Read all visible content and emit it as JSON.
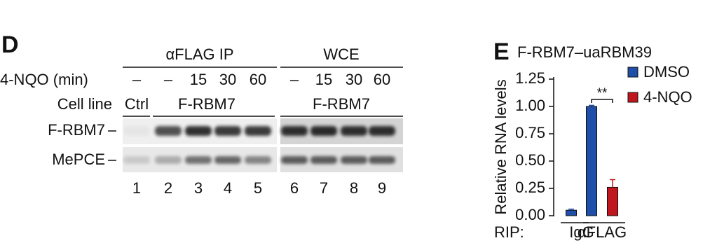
{
  "panel_d": {
    "label": "D",
    "header": {
      "ip": "αFLAG IP",
      "wce": "WCE"
    },
    "treatment": {
      "label": "4-NQO (min)",
      "lanes": [
        "–",
        "–",
        "15",
        "30",
        "60",
        "–",
        "15",
        "30",
        "60"
      ]
    },
    "cell_line": {
      "label": "Cell line",
      "groups": [
        "Ctrl",
        "F-RBM7",
        "F-RBM7"
      ]
    },
    "blots": [
      "F-RBM7",
      "MePCE"
    ],
    "lanes": [
      "1",
      "2",
      "3",
      "4",
      "5",
      "6",
      "7",
      "8",
      "9"
    ]
  },
  "chart_data": {
    "type": "bar",
    "panel_label": "E",
    "title": "F-RBM7–uaRBM39",
    "y_label": "Relative RNA levels",
    "x_label": "RIP:",
    "categories": [
      "IgG",
      "αFLAG"
    ],
    "series": [
      {
        "name": "DMSO",
        "color": "#1f4fa8",
        "values": [
          0.05,
          1.0
        ],
        "errors": [
          0.01,
          0.01
        ]
      },
      {
        "name": "4-NQO",
        "color": "#c0161d",
        "values": [
          null,
          0.26
        ],
        "errors": [
          null,
          0.07
        ]
      }
    ],
    "annotation": "**",
    "ylim": [
      0,
      1.25
    ],
    "yticks": [
      {
        "value": 0,
        "label": "0.00"
      },
      {
        "value": 0.25,
        "label": "0.25"
      },
      {
        "value": 0.5,
        "label": "0.50"
      },
      {
        "value": 0.75,
        "label": "0.75"
      },
      {
        "value": 1,
        "label": "1.00"
      },
      {
        "value": 1.25,
        "label": "1.25"
      }
    ]
  }
}
